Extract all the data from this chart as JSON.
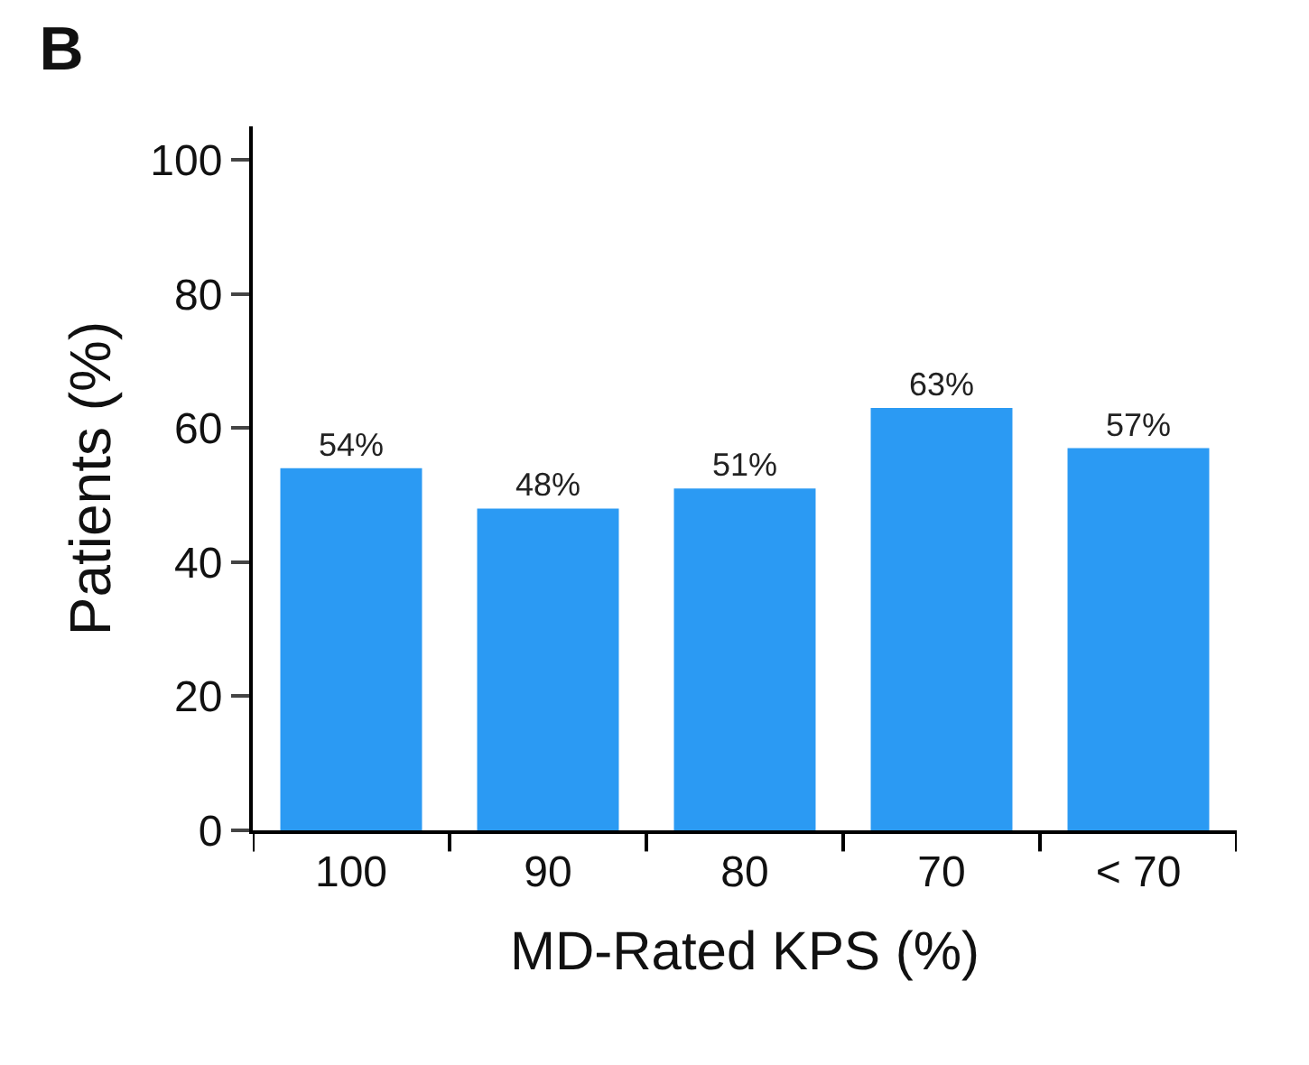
{
  "chart_data": {
    "type": "bar",
    "title": "B",
    "xlabel": "MD-Rated KPS (%)",
    "ylabel": "Patients (%)",
    "categories": [
      "100",
      "90",
      "80",
      "70",
      "< 70"
    ],
    "values": [
      54,
      48,
      51,
      63,
      57
    ],
    "value_labels": [
      "54%",
      "48%",
      "51%",
      "63%",
      "57%"
    ],
    "color": "#2b9af3",
    "ylim": [
      0,
      105
    ],
    "yticks": [
      0,
      20,
      40,
      60,
      80,
      100
    ],
    "legend": false
  }
}
